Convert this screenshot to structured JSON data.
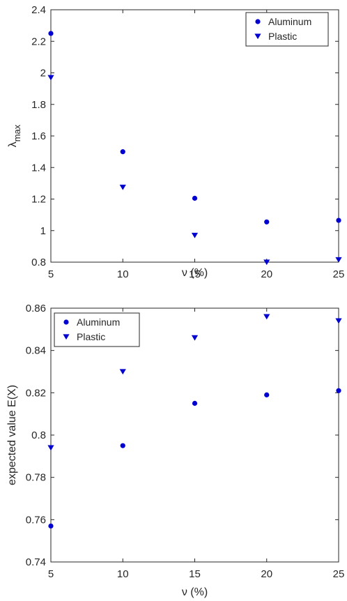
{
  "colors": {
    "series": "#0000d0",
    "axis": "#262626",
    "background": "#ffffff"
  },
  "chart_data": [
    {
      "type": "scatter",
      "xlabel": "ν (%)",
      "ylabel": "λ",
      "ylabel_sub": "max",
      "xlim": [
        5,
        25
      ],
      "ylim": [
        0.8,
        2.4
      ],
      "xticks": [
        5,
        10,
        15,
        20,
        25
      ],
      "yticks": [
        0.8,
        1,
        1.2,
        1.4,
        1.6,
        1.8,
        2,
        2.2,
        2.4
      ],
      "ytick_labels": [
        "0.8",
        "1",
        "1.2",
        "1.4",
        "1.6",
        "1.8",
        "2",
        "2.2",
        "2.4"
      ],
      "grid": false,
      "legend_position": "top-right",
      "series": [
        {
          "name": "Aluminum",
          "marker": "circle",
          "x": [
            5,
            10,
            15,
            20,
            25
          ],
          "y": [
            2.25,
            1.5,
            1.205,
            1.055,
            1.065
          ]
        },
        {
          "name": "Plastic",
          "marker": "triangle-down",
          "x": [
            5,
            10,
            15,
            20,
            25
          ],
          "y": [
            1.97,
            1.275,
            0.97,
            0.8,
            0.815
          ]
        }
      ]
    },
    {
      "type": "scatter",
      "xlabel": "ν (%)",
      "ylabel": "expected value E(X)",
      "ylabel_sub": "",
      "xlim": [
        5,
        25
      ],
      "ylim": [
        0.74,
        0.86
      ],
      "xticks": [
        5,
        10,
        15,
        20,
        25
      ],
      "yticks": [
        0.74,
        0.76,
        0.78,
        0.8,
        0.82,
        0.84,
        0.86
      ],
      "ytick_labels": [
        "0.74",
        "0.76",
        "0.78",
        "0.8",
        "0.82",
        "0.84",
        "0.86"
      ],
      "grid": false,
      "legend_position": "top-left",
      "series": [
        {
          "name": "Aluminum",
          "marker": "circle",
          "x": [
            5,
            10,
            15,
            20,
            25
          ],
          "y": [
            0.757,
            0.795,
            0.815,
            0.819,
            0.821
          ]
        },
        {
          "name": "Plastic",
          "marker": "triangle-down",
          "x": [
            5,
            10,
            15,
            20,
            25
          ],
          "y": [
            0.794,
            0.83,
            0.846,
            0.856,
            0.854
          ]
        }
      ]
    }
  ]
}
